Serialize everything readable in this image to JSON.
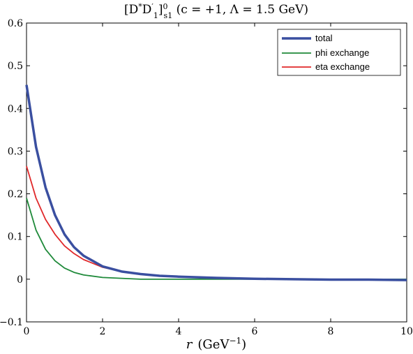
{
  "chart_data": {
    "type": "line",
    "title": "[D*D'1]0s1 (c = +1, Λ = 1.5 GeV)",
    "title_parts": {
      "open": "[D",
      "star": "*",
      "d2": "D",
      "prime": "′",
      "sub1": "1",
      "close": "]",
      "sup0": "0",
      "subs1": "s1",
      "rest": "  (c = +1, Λ = 1.5 GeV)"
    },
    "xlabel": "r",
    "xlabel_unit": "(GeV",
    "xlabel_exp": "−1",
    "xlabel_close": ")",
    "ylabel": "",
    "xlim": [
      0,
      10
    ],
    "ylim": [
      -0.1,
      0.6
    ],
    "xticks": [
      0,
      2,
      4,
      6,
      8,
      10
    ],
    "yticks": [
      -0.1,
      0,
      0.1,
      0.2,
      0.3,
      0.4,
      0.5,
      0.6
    ],
    "xtick_labels": [
      "0",
      "2",
      "4",
      "6",
      "8",
      "10"
    ],
    "ytick_labels": [
      "−0.1",
      "0",
      "0.1",
      "0.2",
      "0.3",
      "0.4",
      "0.5",
      "0.6"
    ],
    "grid": false,
    "legend_position": "top-right",
    "x": [
      0,
      0.25,
      0.5,
      0.75,
      1,
      1.25,
      1.5,
      2,
      2.5,
      3,
      3.5,
      4,
      5,
      6,
      7,
      8,
      9,
      10
    ],
    "series": [
      {
        "name": "total",
        "color": "#3a4fa0",
        "values": [
          0.455,
          0.31,
          0.215,
          0.15,
          0.105,
          0.075,
          0.055,
          0.03,
          0.018,
          0.012,
          0.008,
          0.006,
          0.003,
          0.001,
          0.0,
          -0.001,
          -0.001,
          -0.002
        ]
      },
      {
        "name": "phi exchange",
        "color": "#1f8a3a",
        "values": [
          0.19,
          0.115,
          0.07,
          0.043,
          0.026,
          0.016,
          0.01,
          0.004,
          0.002,
          0.0,
          0.0,
          0.0,
          0.0,
          0.0,
          0.0,
          0.0,
          0.0,
          0.0
        ]
      },
      {
        "name": "eta exchange",
        "color": "#e0282a",
        "values": [
          0.265,
          0.19,
          0.14,
          0.105,
          0.078,
          0.06,
          0.046,
          0.028,
          0.018,
          0.012,
          0.008,
          0.006,
          0.003,
          0.001,
          0.0,
          -0.001,
          -0.001,
          -0.002
        ]
      }
    ]
  }
}
